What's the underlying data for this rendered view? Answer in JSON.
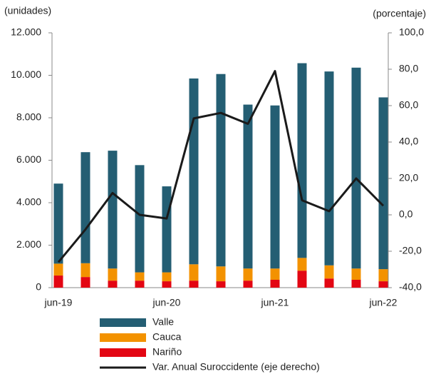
{
  "chart_data": {
    "type": "bar",
    "stacked": true,
    "y_label": "(unidades)",
    "y2_label": "(porcentaje)",
    "categories": [
      "jun-19",
      null,
      null,
      null,
      "jun-20",
      null,
      null,
      null,
      "jun-21",
      null,
      null,
      null,
      "jun-22"
    ],
    "series": [
      {
        "name": "Valle",
        "color": "#245e73",
        "values": [
          3770,
          5230,
          5550,
          5050,
          4050,
          8750,
          9060,
          7720,
          7680,
          9170,
          9130,
          9460,
          8090
        ]
      },
      {
        "name": "Cauca",
        "color": "#f39200",
        "values": [
          560,
          650,
          570,
          390,
          420,
          770,
          700,
          570,
          530,
          600,
          620,
          530,
          570
        ]
      },
      {
        "name": "Nariño",
        "color": "#e30613",
        "values": [
          570,
          500,
          330,
          330,
          300,
          330,
          300,
          330,
          370,
          800,
          430,
          370,
          300
        ]
      },
      {
        "name": "Var. Anual Suroccidente (eje derecho)",
        "color": "#1a1a1a",
        "type": "line",
        "axis": "y2",
        "values": [
          -26,
          -8,
          12,
          0,
          -2,
          53,
          56,
          50,
          79,
          8,
          2,
          20,
          5
        ]
      }
    ],
    "ylim": [
      0,
      12000
    ],
    "yticks": [
      0,
      {
        "value": 2000,
        "label": "2.000"
      },
      {
        "value": 4000,
        "label": "4.000"
      },
      {
        "value": 6000,
        "label": "6.000"
      },
      {
        "value": 8000,
        "label": "8.000"
      },
      {
        "value": 10000,
        "label": "10.000"
      },
      {
        "value": 12000,
        "label": "12.000"
      }
    ],
    "y2lim": [
      -40,
      100
    ],
    "y2ticks": [
      {
        "value": -40,
        "label": "-40,0"
      },
      {
        "value": -20,
        "label": "-20,0"
      },
      {
        "value": 0,
        "label": "0,0"
      },
      {
        "value": 20,
        "label": "20,0"
      },
      {
        "value": 40,
        "label": "40,0"
      },
      {
        "value": 60,
        "label": "60,0"
      },
      {
        "value": 80,
        "label": "80,0"
      },
      {
        "value": 100,
        "label": "100,0"
      }
    ]
  }
}
